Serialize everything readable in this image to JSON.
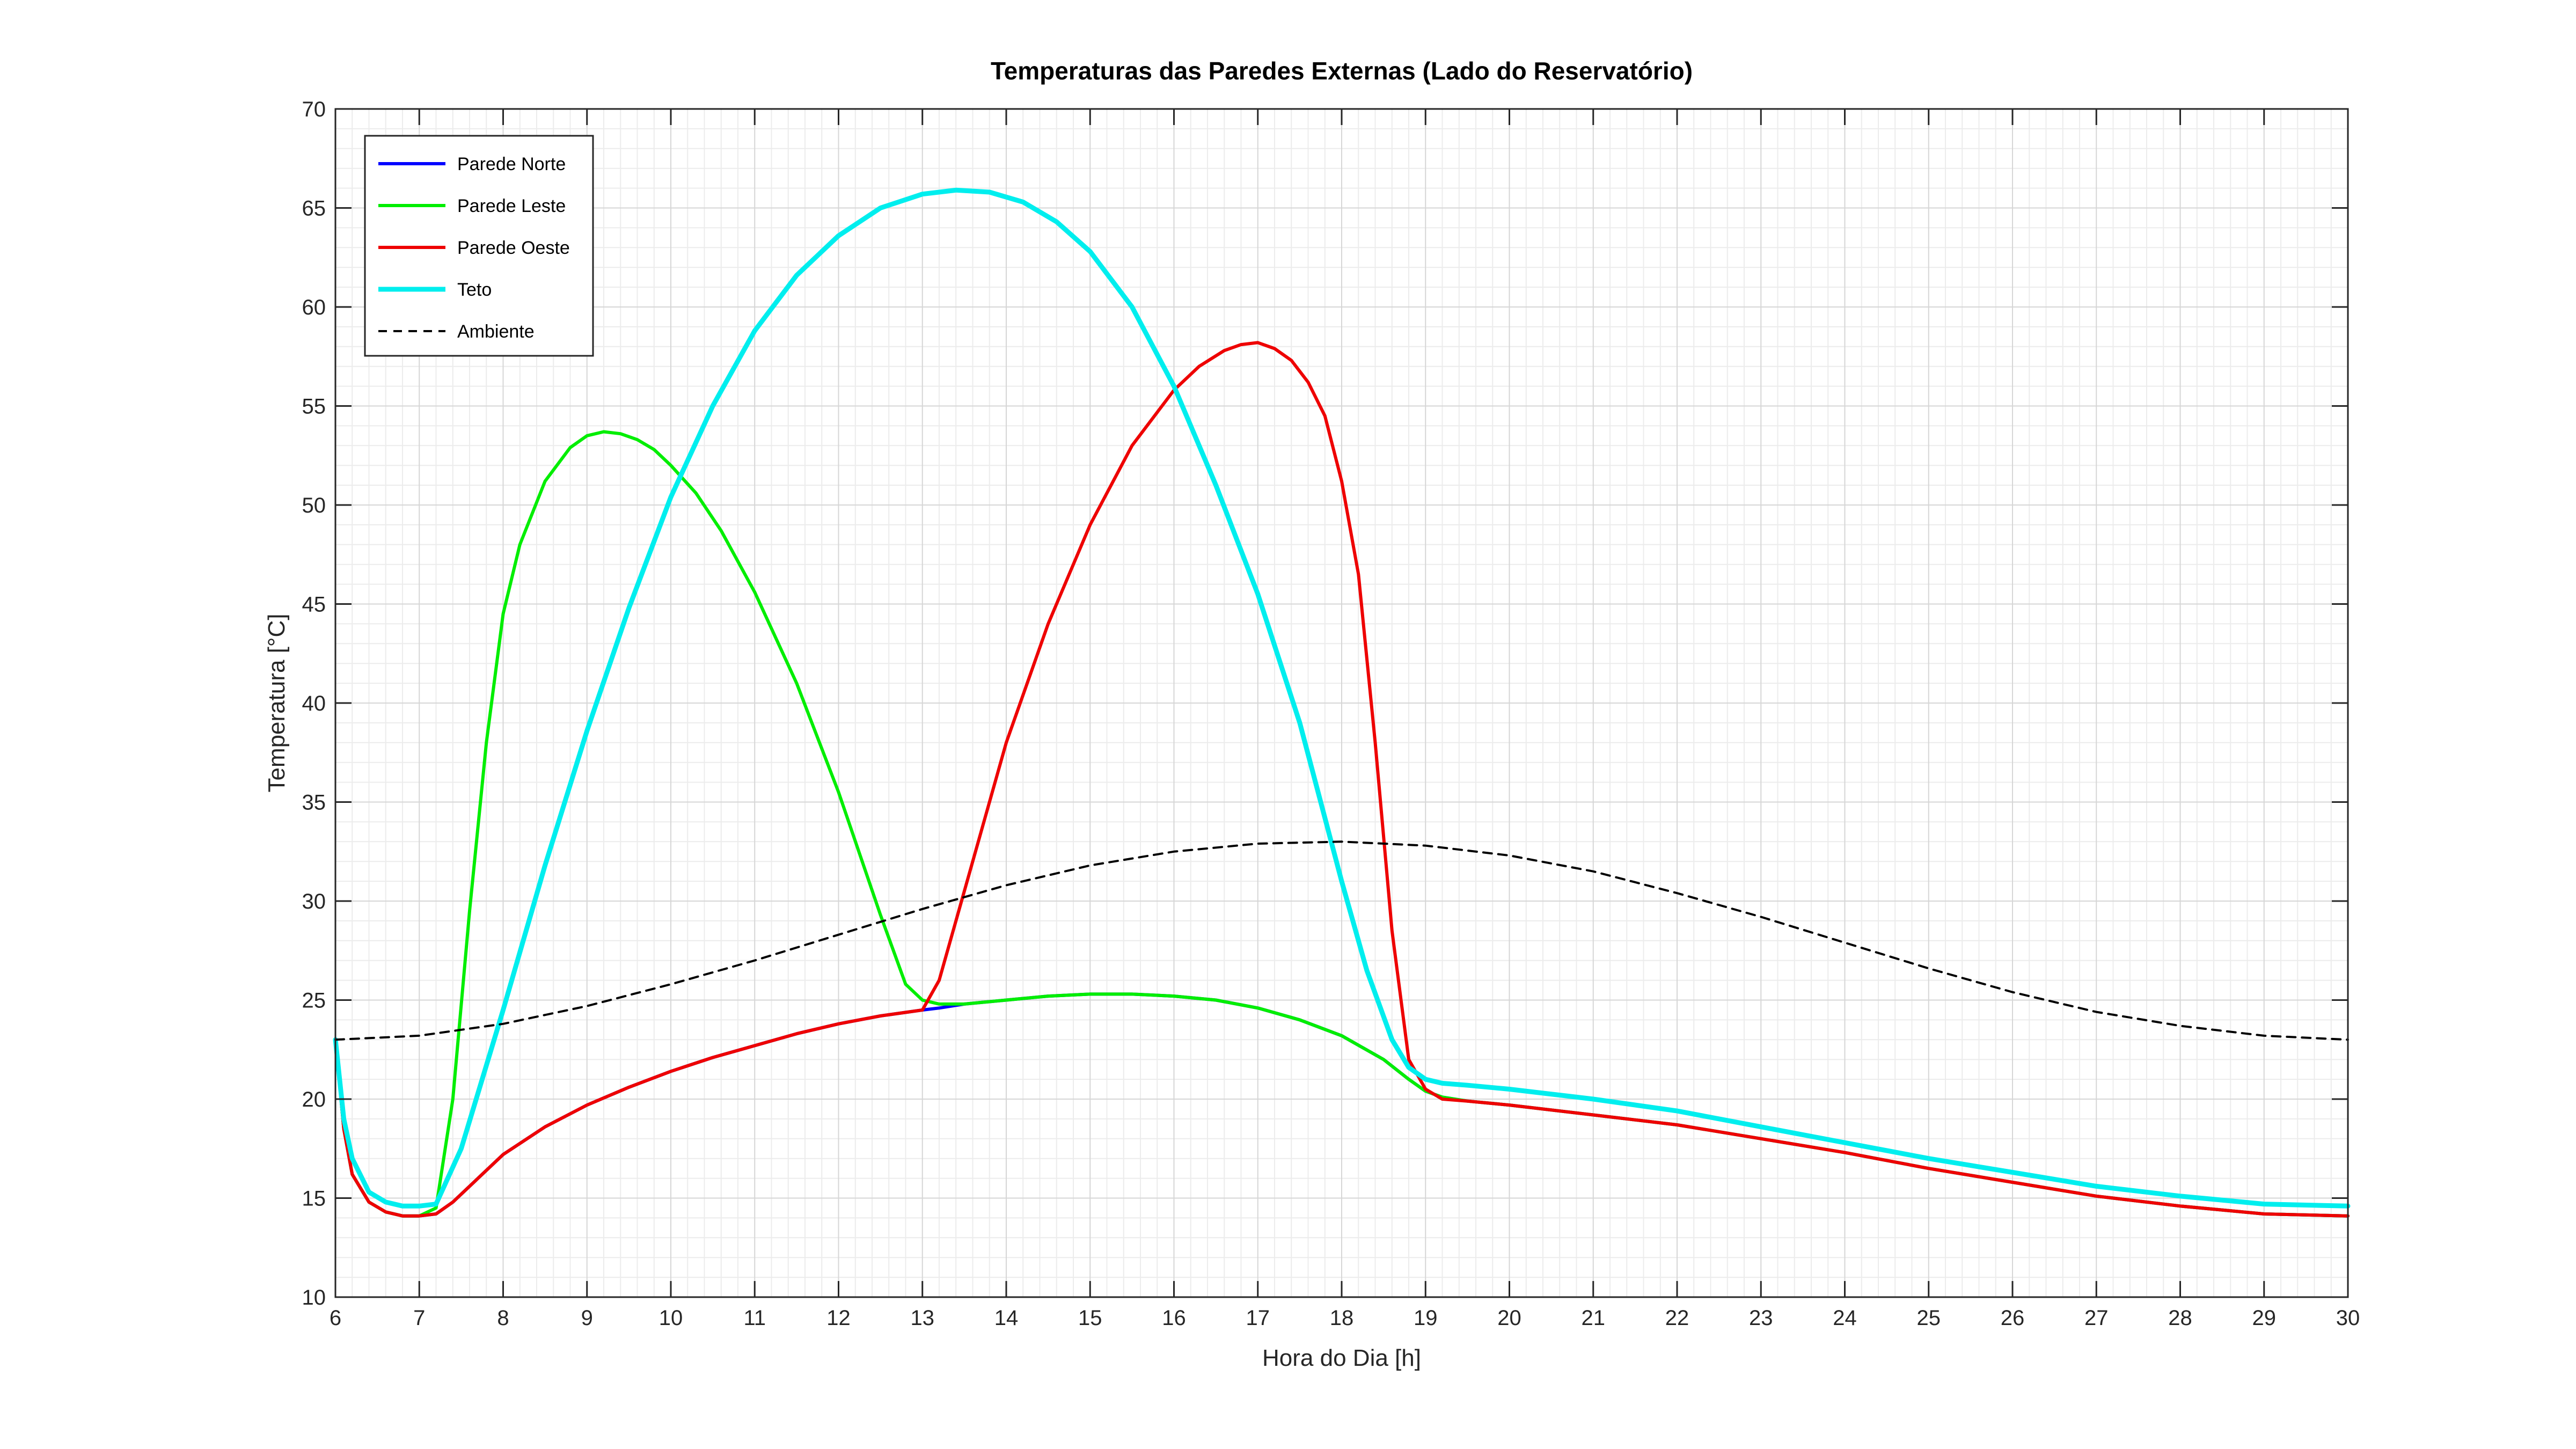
{
  "chart_data": {
    "type": "line",
    "title": "Temperaturas das Paredes Externas (Lado do Reservatório)",
    "xlabel": "Hora do Dia [h]",
    "ylabel": "Temperatura [°C]",
    "xlim": [
      6,
      30
    ],
    "ylim": [
      10,
      70
    ],
    "xticks": [
      6,
      7,
      8,
      9,
      10,
      11,
      12,
      13,
      14,
      15,
      16,
      17,
      18,
      19,
      20,
      21,
      22,
      23,
      24,
      25,
      26,
      27,
      28,
      29,
      30
    ],
    "yticks": [
      10,
      15,
      20,
      25,
      30,
      35,
      40,
      45,
      50,
      55,
      60,
      65,
      70
    ],
    "grid": true,
    "minor_grid": true,
    "legend_position": "top-left",
    "series": [
      {
        "name": "Parede Norte",
        "color": "#0000ff",
        "line_style": "solid",
        "x": [
          6,
          6.1,
          6.2,
          6.4,
          6.6,
          6.8,
          7,
          7.2,
          7.4,
          7.6,
          8,
          8.5,
          9,
          9.5,
          10,
          10.5,
          11,
          11.5,
          12,
          12.5,
          13,
          13.2,
          13.5,
          14,
          14.5,
          15,
          15.5,
          16,
          16.5,
          17,
          17.5,
          18,
          18.5,
          18.8,
          19,
          19.2,
          19.5,
          20,
          21,
          22,
          23,
          24,
          25,
          26,
          27,
          28,
          29,
          30
        ],
        "y": [
          23,
          18.5,
          16.2,
          14.8,
          14.3,
          14.1,
          14.1,
          14.2,
          14.8,
          15.6,
          17.2,
          18.6,
          19.7,
          20.6,
          21.4,
          22.1,
          22.7,
          23.3,
          23.8,
          24.2,
          24.5,
          24.6,
          24.8,
          25.0,
          25.2,
          25.3,
          25.3,
          25.2,
          25.0,
          24.6,
          24.0,
          23.2,
          22.0,
          21.0,
          20.4,
          20.1,
          19.9,
          19.7,
          19.2,
          18.7,
          18.0,
          17.3,
          16.5,
          15.8,
          15.1,
          14.6,
          14.2,
          14.1
        ]
      },
      {
        "name": "Parede Leste",
        "color": "#00ee00",
        "line_style": "solid",
        "x": [
          6,
          6.1,
          6.2,
          6.4,
          6.6,
          6.8,
          7,
          7.2,
          7.4,
          7.6,
          7.8,
          8,
          8.2,
          8.5,
          8.8,
          9,
          9.2,
          9.4,
          9.6,
          9.8,
          10,
          10.3,
          10.6,
          11,
          11.5,
          12,
          12.5,
          12.8,
          13,
          13.2,
          13.5,
          14,
          14.5,
          15,
          15.5,
          16,
          16.5,
          17,
          17.5,
          18,
          18.5,
          18.8,
          19,
          19.2,
          19.5,
          20,
          21,
          22,
          23,
          24,
          25,
          26,
          27,
          28,
          29,
          30
        ],
        "y": [
          23,
          18.5,
          16.2,
          14.8,
          14.3,
          14.1,
          14.1,
          14.5,
          20.0,
          29.5,
          38.0,
          44.5,
          48.0,
          51.2,
          52.9,
          53.5,
          53.7,
          53.6,
          53.3,
          52.8,
          52.0,
          50.6,
          48.7,
          45.6,
          41.0,
          35.5,
          29.3,
          25.8,
          25.0,
          24.8,
          24.8,
          25.0,
          25.2,
          25.3,
          25.3,
          25.2,
          25.0,
          24.6,
          24.0,
          23.2,
          22.0,
          21.0,
          20.4,
          20.1,
          19.9,
          19.7,
          19.2,
          18.7,
          18.0,
          17.3,
          16.5,
          15.8,
          15.1,
          14.6,
          14.2,
          14.1
        ]
      },
      {
        "name": "Parede Oeste",
        "color": "#ee0000",
        "line_style": "solid",
        "x": [
          6,
          6.1,
          6.2,
          6.4,
          6.6,
          6.8,
          7,
          7.2,
          7.4,
          7.6,
          8,
          8.5,
          9,
          9.5,
          10,
          10.5,
          11,
          11.5,
          12,
          12.5,
          13,
          13.2,
          13.5,
          14,
          14.5,
          15,
          15.5,
          16,
          16.3,
          16.6,
          16.8,
          17,
          17.2,
          17.4,
          17.6,
          17.8,
          18,
          18.2,
          18.4,
          18.6,
          18.8,
          19,
          19.2,
          19.5,
          20,
          21,
          22,
          23,
          24,
          25,
          26,
          27,
          28,
          29,
          30
        ],
        "y": [
          23,
          18.5,
          16.2,
          14.8,
          14.3,
          14.1,
          14.1,
          14.2,
          14.8,
          15.6,
          17.2,
          18.6,
          19.7,
          20.6,
          21.4,
          22.1,
          22.7,
          23.3,
          23.8,
          24.2,
          24.5,
          26.0,
          30.5,
          38.0,
          44.0,
          49.0,
          53.0,
          55.8,
          57.0,
          57.8,
          58.1,
          58.2,
          57.9,
          57.3,
          56.2,
          54.5,
          51.2,
          46.5,
          38.0,
          28.5,
          22.0,
          20.5,
          20.0,
          19.9,
          19.7,
          19.2,
          18.7,
          18.0,
          17.3,
          16.5,
          15.8,
          15.1,
          14.6,
          14.2,
          14.1
        ]
      },
      {
        "name": "Teto",
        "color": "#00eeee",
        "line_style": "solid",
        "x": [
          6,
          6.1,
          6.2,
          6.4,
          6.6,
          6.8,
          7,
          7.2,
          7.5,
          8,
          8.5,
          9,
          9.5,
          10,
          10.5,
          11,
          11.5,
          12,
          12.5,
          13,
          13.4,
          13.8,
          14.2,
          14.6,
          15,
          15.5,
          16,
          16.5,
          17,
          17.5,
          18,
          18.3,
          18.6,
          18.8,
          19,
          19.2,
          19.5,
          20,
          21,
          22,
          23,
          24,
          25,
          26,
          27,
          28,
          29,
          30
        ],
        "y": [
          23,
          19.0,
          17.0,
          15.3,
          14.8,
          14.6,
          14.6,
          14.7,
          17.5,
          24.5,
          31.8,
          38.6,
          44.8,
          50.4,
          55.0,
          58.8,
          61.6,
          63.6,
          65.0,
          65.7,
          65.9,
          65.8,
          65.3,
          64.3,
          62.8,
          60.0,
          56.0,
          51.0,
          45.5,
          39.0,
          31.0,
          26.5,
          23.0,
          21.6,
          21.0,
          20.8,
          20.7,
          20.5,
          20.0,
          19.4,
          18.6,
          17.8,
          17.0,
          16.3,
          15.6,
          15.1,
          14.7,
          14.6
        ]
      },
      {
        "name": "Ambiente",
        "color": "#000000",
        "line_style": "dashed",
        "x": [
          6,
          7,
          8,
          9,
          10,
          11,
          12,
          13,
          14,
          15,
          16,
          17,
          18,
          19,
          20,
          21,
          22,
          23,
          24,
          25,
          26,
          27,
          28,
          29,
          30
        ],
        "y": [
          23.0,
          23.2,
          23.8,
          24.7,
          25.8,
          27.0,
          28.3,
          29.6,
          30.8,
          31.8,
          32.5,
          32.9,
          33.0,
          32.8,
          32.3,
          31.5,
          30.4,
          29.2,
          27.9,
          26.6,
          25.4,
          24.4,
          23.7,
          23.2,
          23.0
        ]
      }
    ]
  }
}
